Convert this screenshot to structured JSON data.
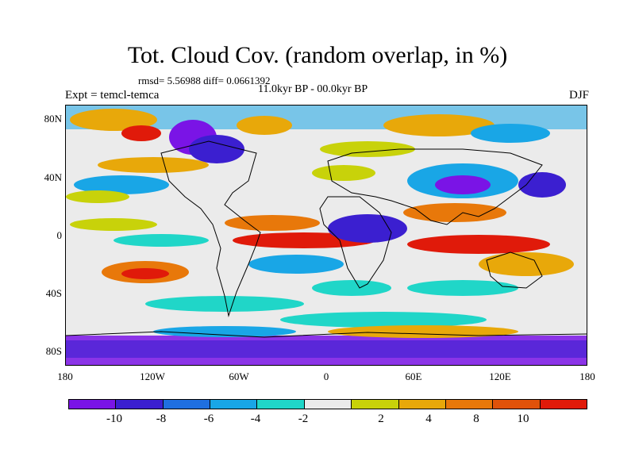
{
  "title": "Tot. Cloud Cov. (random overlap, in %)",
  "stats": "rmsd= 5.56988 diff= 0.0661392",
  "experiment": "Expt = temcl-temca",
  "period": "11.0kyr BP - 00.0kyr BP",
  "season": "DJF",
  "lat_ticks": [
    "80N",
    "40N",
    "0",
    "40S",
    "80S"
  ],
  "lon_ticks": [
    "180",
    "120W",
    "60W",
    "0",
    "60E",
    "120E",
    "180"
  ],
  "colorbar": {
    "labels": [
      "-10",
      "-8",
      "-6",
      "-4",
      "-2",
      "2",
      "4",
      "8",
      "10"
    ],
    "colors": [
      "#7a14e6",
      "#3b1fd0",
      "#1f6fe0",
      "#19a6e6",
      "#20d6c8",
      "#ebebeb",
      "#c8d20a",
      "#e8a80a",
      "#e8780a",
      "#e0520a",
      "#e01a0a"
    ]
  }
}
